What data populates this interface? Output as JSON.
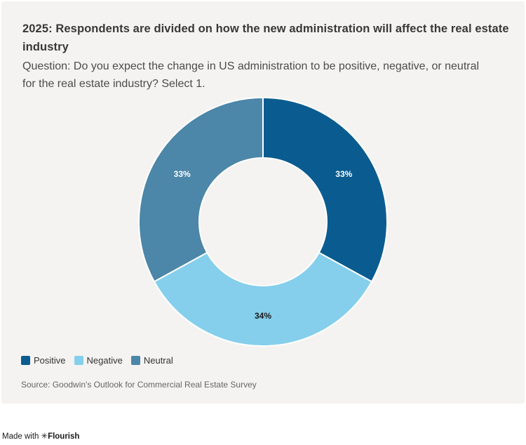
{
  "header": {
    "title": "2025: Respondents are divided on how the new administration will affect the real estate industry",
    "subtitle": "Question: Do you expect the change in US administration to be positive, negative, or neutral for the real estate industry? Select 1."
  },
  "chart_data": {
    "type": "pie",
    "donut": true,
    "title": "2025: Respondents are divided on how the new administration will affect the real estate industry",
    "categories": [
      "Positive",
      "Negative",
      "Neutral"
    ],
    "values": [
      33,
      34,
      33
    ],
    "labels": [
      "33%",
      "34%",
      "33%"
    ],
    "colors": [
      "#0a5c90",
      "#85cfec",
      "#4c86a8"
    ],
    "label_colors": [
      "#ffffff",
      "#1a1a1a",
      "#ffffff"
    ],
    "start_angle": 0,
    "direction": "clockwise",
    "inner_radius_ratio": 0.514,
    "divider_color": "#ffffff",
    "legend_position": "bottom-left",
    "background": "#f4f3f1"
  },
  "source": {
    "text": "Source: Goodwin's Outlook for Commercial Real Estate Survey"
  },
  "footer": {
    "made_with": "Made with",
    "logo": "✳",
    "brand": "Flourish"
  }
}
